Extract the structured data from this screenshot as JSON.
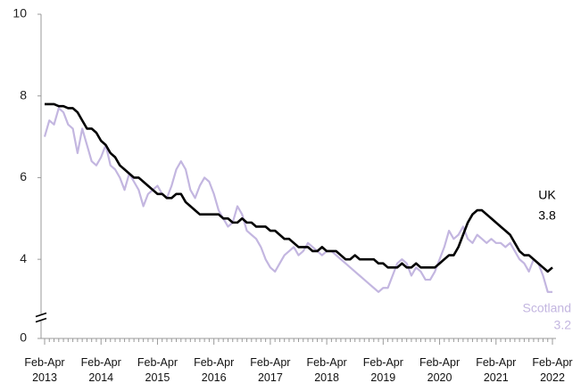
{
  "chart_data": {
    "type": "line",
    "categories": [
      "Feb-Apr 2013",
      null,
      null,
      null,
      null,
      null,
      null,
      null,
      null,
      null,
      null,
      null,
      "Feb-Apr 2014",
      null,
      null,
      null,
      null,
      null,
      null,
      null,
      null,
      null,
      null,
      null,
      "Feb-Apr 2015",
      null,
      null,
      null,
      null,
      null,
      null,
      null,
      null,
      null,
      null,
      null,
      "Feb-Apr 2016",
      null,
      null,
      null,
      null,
      null,
      null,
      null,
      null,
      null,
      null,
      null,
      "Feb-Apr 2017",
      null,
      null,
      null,
      null,
      null,
      null,
      null,
      null,
      null,
      null,
      null,
      "Feb-Apr 2018",
      null,
      null,
      null,
      null,
      null,
      null,
      null,
      null,
      null,
      null,
      null,
      "Feb-Apr 2019",
      null,
      null,
      null,
      null,
      null,
      null,
      null,
      null,
      null,
      null,
      null,
      "Feb-Apr 2020",
      null,
      null,
      null,
      null,
      null,
      null,
      null,
      null,
      null,
      null,
      null,
      "Feb-Apr 2021",
      null,
      null,
      null,
      null,
      null,
      null,
      null,
      null,
      null,
      null,
      null,
      "Feb-Apr 2022"
    ],
    "series": [
      {
        "name": "UK",
        "color": "#000000",
        "values": [
          7.8,
          7.8,
          7.8,
          7.75,
          7.75,
          7.7,
          7.7,
          7.6,
          7.4,
          7.2,
          7.2,
          7.1,
          6.9,
          6.8,
          6.6,
          6.5,
          6.3,
          6.2,
          6.1,
          6.0,
          6.0,
          5.9,
          5.8,
          5.7,
          5.6,
          5.6,
          5.5,
          5.5,
          5.6,
          5.6,
          5.4,
          5.3,
          5.2,
          5.1,
          5.1,
          5.1,
          5.1,
          5.1,
          5.0,
          5.0,
          4.9,
          4.9,
          5.0,
          4.9,
          4.9,
          4.8,
          4.8,
          4.8,
          4.7,
          4.7,
          4.6,
          4.5,
          4.5,
          4.4,
          4.3,
          4.3,
          4.3,
          4.2,
          4.2,
          4.3,
          4.2,
          4.2,
          4.2,
          4.1,
          4.0,
          4.0,
          4.1,
          4.0,
          4.0,
          4.0,
          4.0,
          3.9,
          3.9,
          3.8,
          3.8,
          3.8,
          3.9,
          3.8,
          3.8,
          3.9,
          3.8,
          3.8,
          3.8,
          3.8,
          3.9,
          4.0,
          4.1,
          4.1,
          4.3,
          4.6,
          4.9,
          5.1,
          5.2,
          5.2,
          5.1,
          5.0,
          4.9,
          4.8,
          4.7,
          4.6,
          4.4,
          4.2,
          4.1,
          4.1,
          4.0,
          3.9,
          3.8,
          3.7,
          3.8
        ]
      },
      {
        "name": "Scotland",
        "color": "#c3b6e0",
        "values": [
          7.0,
          7.4,
          7.3,
          7.7,
          7.6,
          7.3,
          7.2,
          6.6,
          7.2,
          6.8,
          6.4,
          6.3,
          6.5,
          6.8,
          6.3,
          6.2,
          6.0,
          5.7,
          6.1,
          5.9,
          5.7,
          5.3,
          5.6,
          5.7,
          5.8,
          5.6,
          5.5,
          5.8,
          6.2,
          6.4,
          6.2,
          5.7,
          5.5,
          5.8,
          6.0,
          5.9,
          5.6,
          5.2,
          5.0,
          4.8,
          4.9,
          5.3,
          5.1,
          4.7,
          4.6,
          4.5,
          4.3,
          4.0,
          3.8,
          3.7,
          3.9,
          4.1,
          4.2,
          4.3,
          4.1,
          4.2,
          4.4,
          4.3,
          4.2,
          4.1,
          4.2,
          4.2,
          4.1,
          4.0,
          3.9,
          3.8,
          3.7,
          3.6,
          3.5,
          3.4,
          3.3,
          3.2,
          3.3,
          3.3,
          3.6,
          3.9,
          4.0,
          3.9,
          3.6,
          3.8,
          3.7,
          3.5,
          3.5,
          3.7,
          4.0,
          4.3,
          4.7,
          4.5,
          4.6,
          4.8,
          4.5,
          4.4,
          4.6,
          4.5,
          4.4,
          4.5,
          4.4,
          4.4,
          4.3,
          4.4,
          4.2,
          4.0,
          3.9,
          3.7,
          4.0,
          3.9,
          3.6,
          3.2,
          3.2
        ]
      }
    ],
    "ylim": [
      0,
      10
    ],
    "yticks": [
      0,
      4,
      6,
      8,
      10
    ],
    "y_break": [
      0,
      3
    ],
    "grid": false
  }
}
